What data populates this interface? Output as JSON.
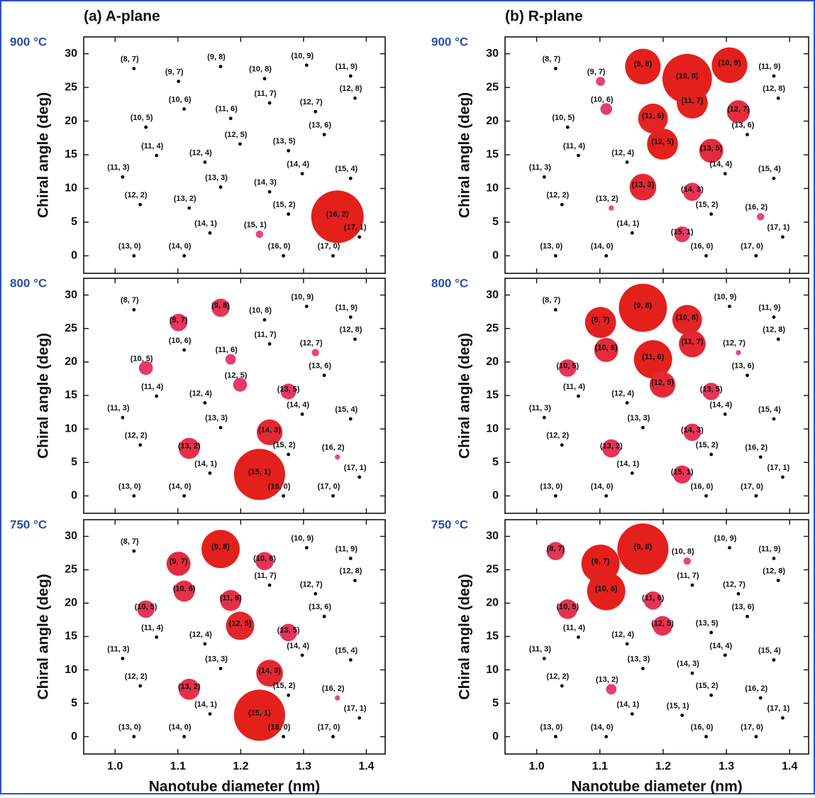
{
  "chart_data": [
    {
      "type": "bubble",
      "title": "(a) A-plane",
      "temperature": "900 °C",
      "ylabel": "Chiral angle (deg)",
      "point_labels": [
        "(8, 7)",
        "(9, 7)",
        "(9, 8)",
        "(10, 8)",
        "(10, 9)",
        "(11, 9)",
        "(10, 6)",
        "(11, 7)",
        "(12, 8)",
        "(10, 5)",
        "(11, 6)",
        "(12, 7)",
        "(13, 6)",
        "(12, 5)",
        "(11, 4)",
        "(12, 4)",
        "(13, 5)",
        "(11, 3)",
        "(14, 4)",
        "(15, 4)",
        "(13, 3)",
        "(14, 3)",
        "(12, 2)",
        "(13, 2)",
        "(15, 2)",
        "(16, 2)",
        "(14, 1)",
        "(15, 1)",
        "(17, 1)",
        "(13, 0)",
        "(14, 0)",
        "(16, 0)",
        "(17, 0)"
      ],
      "x": [
        1.03,
        1.101,
        1.168,
        1.238,
        1.305,
        1.375,
        1.11,
        1.246,
        1.382,
        1.049,
        1.184,
        1.319,
        1.333,
        1.199,
        1.066,
        1.143,
        1.276,
        1.012,
        1.298,
        1.375,
        1.168,
        1.246,
        1.04,
        1.118,
        1.276,
        1.354,
        1.151,
        1.23,
        1.389,
        1.03,
        1.11,
        1.268,
        1.347
      ],
      "y": [
        27.8,
        25.9,
        28.1,
        26.3,
        28.3,
        26.7,
        21.8,
        22.7,
        23.4,
        19.1,
        20.4,
        21.4,
        18.0,
        16.6,
        14.9,
        13.9,
        15.6,
        11.7,
        12.2,
        11.5,
        10.2,
        9.5,
        7.6,
        7.1,
        6.2,
        5.8,
        3.4,
        3.2,
        2.8,
        0,
        0,
        0,
        0
      ],
      "sizes": [
        0,
        0,
        0,
        0,
        0,
        0,
        0,
        0,
        0,
        0,
        0,
        0,
        0,
        0,
        0,
        0,
        0,
        0,
        0,
        0,
        0,
        0,
        0,
        0,
        0,
        100,
        0,
        2,
        0,
        0,
        0,
        0,
        0
      ],
      "xlim": [
        0.95,
        1.43
      ],
      "xticks": [
        {
          "value": 1,
          "label": "1.0"
        },
        1.1,
        1.2,
        1.3,
        1.4
      ],
      "ylim": [
        -2.6,
        32.5
      ],
      "yticks": [
        0,
        5,
        10,
        15,
        20,
        25,
        30
      ],
      "dot_color": "#000000",
      "color_low": "#e84fa6",
      "color_high": "#e3201c"
    },
    {
      "type": "bubble",
      "temperature": "800 °C",
      "ylabel": "Chiral angle (deg)",
      "point_labels": [
        "(8, 7)",
        "(9, 7)",
        "(9, 8)",
        "(10, 8)",
        "(10, 9)",
        "(11, 9)",
        "(10, 6)",
        "(11, 7)",
        "(12, 8)",
        "(10, 5)",
        "(11, 6)",
        "(12, 7)",
        "(13, 6)",
        "(12, 5)",
        "(11, 4)",
        "(12, 4)",
        "(13, 5)",
        "(11, 3)",
        "(14, 4)",
        "(15, 4)",
        "(13, 3)",
        "(14, 3)",
        "(12, 2)",
        "(13, 2)",
        "(15, 2)",
        "(16, 2)",
        "(14, 1)",
        "(15, 1)",
        "(17, 1)",
        "(13, 0)",
        "(14, 0)",
        "(16, 0)",
        "(17, 0)"
      ],
      "x": [
        1.03,
        1.101,
        1.168,
        1.238,
        1.305,
        1.375,
        1.11,
        1.246,
        1.382,
        1.049,
        1.184,
        1.319,
        1.333,
        1.199,
        1.066,
        1.143,
        1.276,
        1.012,
        1.298,
        1.375,
        1.168,
        1.246,
        1.04,
        1.118,
        1.276,
        1.354,
        1.151,
        1.23,
        1.389,
        1.03,
        1.11,
        1.268,
        1.347
      ],
      "y": [
        27.8,
        25.9,
        28.1,
        26.3,
        28.3,
        26.7,
        21.8,
        22.7,
        23.4,
        19.1,
        20.4,
        21.4,
        18.0,
        16.6,
        14.9,
        13.9,
        15.6,
        11.7,
        12.2,
        11.5,
        10.2,
        9.5,
        7.6,
        7.1,
        6.2,
        5.8,
        3.4,
        3.2,
        2.8,
        0,
        0,
        0,
        0
      ],
      "sizes": [
        0,
        11,
        12,
        0,
        0,
        0,
        0,
        0,
        0,
        7,
        4,
        2,
        0,
        7,
        0,
        0,
        9,
        0,
        0,
        0,
        0,
        24,
        0,
        16,
        0,
        1,
        0,
        95,
        0,
        0,
        0,
        0,
        0
      ],
      "xlim": [
        0.95,
        1.43
      ],
      "xticks": [
        {
          "value": 1,
          "label": "1.0"
        },
        1.1,
        1.2,
        1.3,
        1.4
      ],
      "ylim": [
        -2.6,
        32.5
      ],
      "yticks": [
        0,
        5,
        10,
        15,
        20,
        25,
        30
      ],
      "dot_color": "#000000",
      "color_low": "#e84fa6",
      "color_high": "#e3201c"
    },
    {
      "type": "bubble",
      "temperature": "750 °C",
      "ylabel": "Chiral angle (deg)",
      "xlabel": "Nanotube diameter (nm)",
      "point_labels": [
        "(8, 7)",
        "(9, 7)",
        "(9, 8)",
        "(10, 8)",
        "(10, 9)",
        "(11, 9)",
        "(10, 6)",
        "(11, 7)",
        "(12, 8)",
        "(10, 5)",
        "(11, 6)",
        "(12, 7)",
        "(13, 6)",
        "(12, 5)",
        "(11, 4)",
        "(12, 4)",
        "(13, 5)",
        "(11, 3)",
        "(14, 4)",
        "(15, 4)",
        "(13, 3)",
        "(14, 3)",
        "(12, 2)",
        "(13, 2)",
        "(15, 2)",
        "(16, 2)",
        "(14, 1)",
        "(15, 1)",
        "(17, 1)",
        "(13, 0)",
        "(14, 0)",
        "(16, 0)",
        "(17, 0)"
      ],
      "x": [
        1.03,
        1.101,
        1.168,
        1.238,
        1.305,
        1.375,
        1.11,
        1.246,
        1.382,
        1.049,
        1.184,
        1.319,
        1.333,
        1.199,
        1.066,
        1.143,
        1.276,
        1.012,
        1.298,
        1.375,
        1.168,
        1.246,
        1.04,
        1.118,
        1.276,
        1.354,
        1.151,
        1.23,
        1.389,
        1.03,
        1.11,
        1.268,
        1.347
      ],
      "y": [
        27.8,
        25.9,
        28.1,
        26.3,
        28.3,
        26.7,
        21.8,
        22.7,
        23.4,
        19.1,
        20.4,
        21.4,
        18.0,
        16.6,
        14.9,
        13.9,
        15.6,
        11.7,
        12.2,
        11.5,
        10.2,
        9.5,
        7.6,
        7.1,
        6.2,
        5.8,
        3.4,
        3.2,
        2.8,
        0,
        0,
        0,
        0
      ],
      "sizes": [
        0,
        21,
        53,
        12,
        0,
        0,
        16,
        0,
        0,
        11,
        16,
        0,
        0,
        29,
        0,
        0,
        11,
        0,
        0,
        0,
        0,
        26,
        0,
        16,
        0,
        1,
        0,
        95,
        0,
        0,
        0,
        0,
        0
      ],
      "xlim": [
        0.95,
        1.43
      ],
      "xticks": [
        {
          "value": 1,
          "label": "1.0"
        },
        1.1,
        1.2,
        1.3,
        1.4
      ],
      "ylim": [
        -2.6,
        32.5
      ],
      "yticks": [
        0,
        5,
        10,
        15,
        20,
        25,
        30
      ],
      "dot_color": "#000000",
      "color_low": "#e84fa6",
      "color_high": "#e3201c"
    },
    {
      "type": "bubble",
      "title": "(b) R-plane",
      "temperature": "900 °C",
      "ylabel": "Chiral angle (deg)",
      "point_labels": [
        "(8, 7)",
        "(9, 7)",
        "(9, 8)",
        "(10, 8)",
        "(10, 9)",
        "(11, 9)",
        "(10, 6)",
        "(11, 7)",
        "(12, 8)",
        "(10, 5)",
        "(11, 6)",
        "(12, 7)",
        "(13, 6)",
        "(12, 5)",
        "(11, 4)",
        "(12, 4)",
        "(13, 5)",
        "(11, 3)",
        "(14, 4)",
        "(15, 4)",
        "(13, 3)",
        "(14, 3)",
        "(12, 2)",
        "(13, 2)",
        "(15, 2)",
        "(16, 2)",
        "(14, 1)",
        "(15, 1)",
        "(17, 1)",
        "(13, 0)",
        "(14, 0)",
        "(16, 0)",
        "(17, 0)"
      ],
      "x": [
        1.03,
        1.101,
        1.168,
        1.238,
        1.305,
        1.375,
        1.11,
        1.246,
        1.382,
        1.049,
        1.184,
        1.319,
        1.333,
        1.199,
        1.066,
        1.143,
        1.276,
        1.012,
        1.298,
        1.375,
        1.168,
        1.246,
        1.04,
        1.118,
        1.276,
        1.354,
        1.151,
        1.23,
        1.389,
        1.03,
        1.11,
        1.268,
        1.347
      ],
      "y": [
        27.8,
        25.9,
        28.1,
        26.3,
        28.3,
        26.7,
        21.8,
        22.7,
        23.4,
        19.1,
        20.4,
        21.4,
        18.0,
        16.6,
        14.9,
        13.9,
        15.6,
        11.7,
        12.2,
        11.5,
        10.2,
        9.5,
        7.6,
        7.1,
        6.2,
        5.8,
        3.4,
        3.2,
        2.8,
        0,
        0,
        0,
        0
      ],
      "sizes": [
        0,
        3,
        46,
        89,
        46,
        0,
        5,
        35,
        0,
        0,
        32,
        19,
        0,
        35,
        0,
        0,
        21,
        0,
        0,
        0,
        26,
        12,
        0,
        1,
        0,
        2,
        0,
        9,
        0,
        0,
        0,
        0,
        0
      ],
      "xlim": [
        0.95,
        1.43
      ],
      "xticks": [
        {
          "value": 1,
          "label": "1.0"
        },
        1.1,
        1.2,
        1.3,
        1.4
      ],
      "ylim": [
        -2.6,
        32.5
      ],
      "yticks": [
        0,
        5,
        10,
        15,
        20,
        25,
        30
      ],
      "dot_color": "#000000",
      "color_low": "#e84fa6",
      "color_high": "#e3201c"
    },
    {
      "type": "bubble",
      "temperature": "800 °C",
      "ylabel": "Chiral angle (deg)",
      "point_labels": [
        "(8, 7)",
        "(9, 7)",
        "(9, 8)",
        "(10, 8)",
        "(10, 9)",
        "(11, 9)",
        "(10, 6)",
        "(11, 7)",
        "(12, 8)",
        "(10, 5)",
        "(11, 6)",
        "(12, 7)",
        "(13, 6)",
        "(12, 5)",
        "(11, 4)",
        "(12, 4)",
        "(13, 5)",
        "(11, 3)",
        "(14, 4)",
        "(15, 4)",
        "(13, 3)",
        "(14, 3)",
        "(12, 2)",
        "(13, 2)",
        "(15, 2)",
        "(16, 2)",
        "(14, 1)",
        "(15, 1)",
        "(17, 1)",
        "(13, 0)",
        "(14, 0)",
        "(16, 0)",
        "(17, 0)"
      ],
      "x": [
        1.03,
        1.101,
        1.168,
        1.238,
        1.305,
        1.375,
        1.11,
        1.246,
        1.382,
        1.049,
        1.184,
        1.319,
        1.333,
        1.199,
        1.066,
        1.143,
        1.276,
        1.012,
        1.298,
        1.375,
        1.168,
        1.246,
        1.04,
        1.118,
        1.276,
        1.354,
        1.151,
        1.23,
        1.389,
        1.03,
        1.11,
        1.268,
        1.347
      ],
      "y": [
        27.8,
        25.9,
        28.1,
        26.3,
        28.3,
        26.7,
        21.8,
        22.7,
        23.4,
        19.1,
        20.4,
        21.4,
        18.0,
        16.6,
        14.9,
        13.9,
        15.6,
        11.7,
        12.2,
        11.5,
        10.2,
        9.5,
        7.6,
        7.1,
        6.2,
        5.8,
        3.4,
        3.2,
        2.8,
        0,
        0,
        0,
        0
      ],
      "sizes": [
        0,
        35,
        84,
        32,
        0,
        0,
        21,
        26,
        0,
        11,
        53,
        1,
        0,
        24,
        0,
        0,
        11,
        0,
        0,
        0,
        0,
        11,
        0,
        12,
        0,
        0,
        0,
        12,
        0,
        0,
        0,
        0,
        0
      ],
      "xlim": [
        0.95,
        1.43
      ],
      "xticks": [
        {
          "value": 1,
          "label": "1.0"
        },
        1.1,
        1.2,
        1.3,
        1.4
      ],
      "ylim": [
        -2.6,
        32.5
      ],
      "yticks": [
        0,
        5,
        10,
        15,
        20,
        25,
        30
      ],
      "dot_color": "#000000",
      "color_low": "#e84fa6",
      "color_high": "#e3201c"
    },
    {
      "type": "bubble",
      "temperature": "750 °C",
      "ylabel": "Chiral angle (deg)",
      "xlabel": "Nanotube diameter (nm)",
      "point_labels": [
        "(8, 7)",
        "(9, 7)",
        "(9, 8)",
        "(10, 8)",
        "(10, 9)",
        "(11, 9)",
        "(10, 6)",
        "(11, 7)",
        "(12, 8)",
        "(10, 5)",
        "(11, 6)",
        "(12, 7)",
        "(13, 6)",
        "(12, 5)",
        "(11, 4)",
        "(12, 4)",
        "(13, 5)",
        "(11, 3)",
        "(14, 4)",
        "(15, 4)",
        "(13, 3)",
        "(14, 3)",
        "(12, 2)",
        "(13, 2)",
        "(15, 2)",
        "(16, 2)",
        "(14, 1)",
        "(15, 1)",
        "(17, 1)",
        "(13, 0)",
        "(14, 0)",
        "(16, 0)",
        "(17, 0)"
      ],
      "x": [
        1.03,
        1.101,
        1.168,
        1.238,
        1.305,
        1.375,
        1.11,
        1.246,
        1.382,
        1.049,
        1.184,
        1.319,
        1.333,
        1.199,
        1.066,
        1.143,
        1.276,
        1.012,
        1.298,
        1.375,
        1.168,
        1.246,
        1.04,
        1.118,
        1.276,
        1.354,
        1.151,
        1.23,
        1.389,
        1.03,
        1.11,
        1.268,
        1.347
      ],
      "y": [
        27.8,
        25.9,
        28.1,
        26.3,
        28.3,
        26.7,
        21.8,
        22.7,
        23.4,
        19.1,
        20.4,
        21.4,
        18.0,
        16.6,
        14.9,
        13.9,
        15.6,
        11.7,
        12.2,
        11.5,
        10.2,
        9.5,
        7.6,
        7.1,
        6.2,
        5.8,
        3.4,
        3.2,
        2.8,
        0,
        0,
        0,
        0
      ],
      "sizes": [
        12,
        53,
        95,
        2,
        0,
        0,
        53,
        0,
        0,
        14,
        12,
        0,
        0,
        14,
        0,
        0,
        0,
        0,
        0,
        0,
        0,
        0,
        0,
        4,
        0,
        0,
        0,
        0,
        0,
        0,
        0,
        0,
        0
      ],
      "xlim": [
        0.95,
        1.43
      ],
      "xticks": [
        {
          "value": 1,
          "label": "1.0"
        },
        1.1,
        1.2,
        1.3,
        1.4
      ],
      "ylim": [
        -2.6,
        32.5
      ],
      "yticks": [
        0,
        5,
        10,
        15,
        20,
        25,
        30
      ],
      "dot_color": "#000000",
      "color_low": "#e84fa6",
      "color_high": "#e3201c"
    }
  ]
}
